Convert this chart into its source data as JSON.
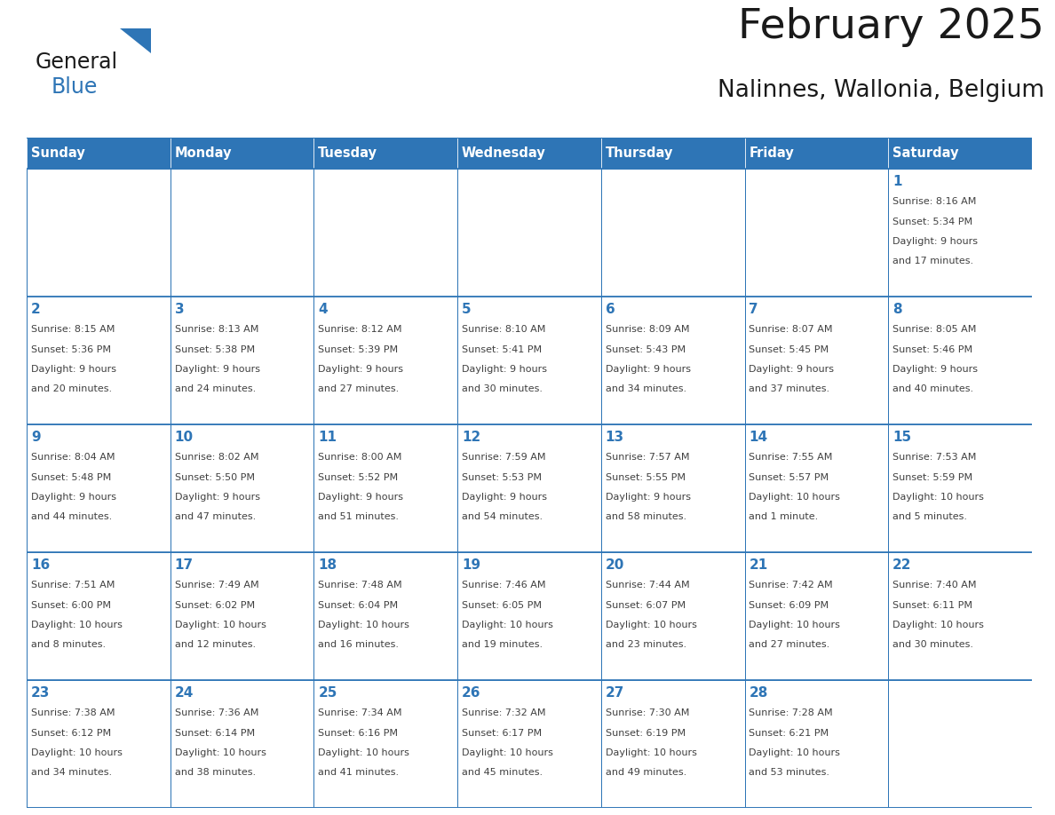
{
  "title": "February 2025",
  "subtitle": "Nalinnes, Wallonia, Belgium",
  "days_of_week": [
    "Sunday",
    "Monday",
    "Tuesday",
    "Wednesday",
    "Thursday",
    "Friday",
    "Saturday"
  ],
  "header_bg": "#2E75B6",
  "header_text": "#FFFFFF",
  "cell_bg": "#FFFFFF",
  "cell_border": "#2E75B6",
  "day_number_color": "#2E75B6",
  "info_text_color": "#404040",
  "title_color": "#1a1a1a",
  "subtitle_color": "#1a1a1a",
  "logo_general_color": "#1a1a1a",
  "logo_blue_color": "#2E75B6",
  "weeks": [
    [
      {
        "day": null,
        "info": ""
      },
      {
        "day": null,
        "info": ""
      },
      {
        "day": null,
        "info": ""
      },
      {
        "day": null,
        "info": ""
      },
      {
        "day": null,
        "info": ""
      },
      {
        "day": null,
        "info": ""
      },
      {
        "day": 1,
        "info": "Sunrise: 8:16 AM\nSunset: 5:34 PM\nDaylight: 9 hours\nand 17 minutes."
      }
    ],
    [
      {
        "day": 2,
        "info": "Sunrise: 8:15 AM\nSunset: 5:36 PM\nDaylight: 9 hours\nand 20 minutes."
      },
      {
        "day": 3,
        "info": "Sunrise: 8:13 AM\nSunset: 5:38 PM\nDaylight: 9 hours\nand 24 minutes."
      },
      {
        "day": 4,
        "info": "Sunrise: 8:12 AM\nSunset: 5:39 PM\nDaylight: 9 hours\nand 27 minutes."
      },
      {
        "day": 5,
        "info": "Sunrise: 8:10 AM\nSunset: 5:41 PM\nDaylight: 9 hours\nand 30 minutes."
      },
      {
        "day": 6,
        "info": "Sunrise: 8:09 AM\nSunset: 5:43 PM\nDaylight: 9 hours\nand 34 minutes."
      },
      {
        "day": 7,
        "info": "Sunrise: 8:07 AM\nSunset: 5:45 PM\nDaylight: 9 hours\nand 37 minutes."
      },
      {
        "day": 8,
        "info": "Sunrise: 8:05 AM\nSunset: 5:46 PM\nDaylight: 9 hours\nand 40 minutes."
      }
    ],
    [
      {
        "day": 9,
        "info": "Sunrise: 8:04 AM\nSunset: 5:48 PM\nDaylight: 9 hours\nand 44 minutes."
      },
      {
        "day": 10,
        "info": "Sunrise: 8:02 AM\nSunset: 5:50 PM\nDaylight: 9 hours\nand 47 minutes."
      },
      {
        "day": 11,
        "info": "Sunrise: 8:00 AM\nSunset: 5:52 PM\nDaylight: 9 hours\nand 51 minutes."
      },
      {
        "day": 12,
        "info": "Sunrise: 7:59 AM\nSunset: 5:53 PM\nDaylight: 9 hours\nand 54 minutes."
      },
      {
        "day": 13,
        "info": "Sunrise: 7:57 AM\nSunset: 5:55 PM\nDaylight: 9 hours\nand 58 minutes."
      },
      {
        "day": 14,
        "info": "Sunrise: 7:55 AM\nSunset: 5:57 PM\nDaylight: 10 hours\nand 1 minute."
      },
      {
        "day": 15,
        "info": "Sunrise: 7:53 AM\nSunset: 5:59 PM\nDaylight: 10 hours\nand 5 minutes."
      }
    ],
    [
      {
        "day": 16,
        "info": "Sunrise: 7:51 AM\nSunset: 6:00 PM\nDaylight: 10 hours\nand 8 minutes."
      },
      {
        "day": 17,
        "info": "Sunrise: 7:49 AM\nSunset: 6:02 PM\nDaylight: 10 hours\nand 12 minutes."
      },
      {
        "day": 18,
        "info": "Sunrise: 7:48 AM\nSunset: 6:04 PM\nDaylight: 10 hours\nand 16 minutes."
      },
      {
        "day": 19,
        "info": "Sunrise: 7:46 AM\nSunset: 6:05 PM\nDaylight: 10 hours\nand 19 minutes."
      },
      {
        "day": 20,
        "info": "Sunrise: 7:44 AM\nSunset: 6:07 PM\nDaylight: 10 hours\nand 23 minutes."
      },
      {
        "day": 21,
        "info": "Sunrise: 7:42 AM\nSunset: 6:09 PM\nDaylight: 10 hours\nand 27 minutes."
      },
      {
        "day": 22,
        "info": "Sunrise: 7:40 AM\nSunset: 6:11 PM\nDaylight: 10 hours\nand 30 minutes."
      }
    ],
    [
      {
        "day": 23,
        "info": "Sunrise: 7:38 AM\nSunset: 6:12 PM\nDaylight: 10 hours\nand 34 minutes."
      },
      {
        "day": 24,
        "info": "Sunrise: 7:36 AM\nSunset: 6:14 PM\nDaylight: 10 hours\nand 38 minutes."
      },
      {
        "day": 25,
        "info": "Sunrise: 7:34 AM\nSunset: 6:16 PM\nDaylight: 10 hours\nand 41 minutes."
      },
      {
        "day": 26,
        "info": "Sunrise: 7:32 AM\nSunset: 6:17 PM\nDaylight: 10 hours\nand 45 minutes."
      },
      {
        "day": 27,
        "info": "Sunrise: 7:30 AM\nSunset: 6:19 PM\nDaylight: 10 hours\nand 49 minutes."
      },
      {
        "day": 28,
        "info": "Sunrise: 7:28 AM\nSunset: 6:21 PM\nDaylight: 10 hours\nand 53 minutes."
      },
      {
        "day": null,
        "info": ""
      }
    ]
  ],
  "fig_width": 11.88,
  "fig_height": 9.18,
  "header_font_size": 10.5,
  "day_number_font_size": 11,
  "info_font_size": 8.0,
  "title_font_size": 34,
  "subtitle_font_size": 19
}
